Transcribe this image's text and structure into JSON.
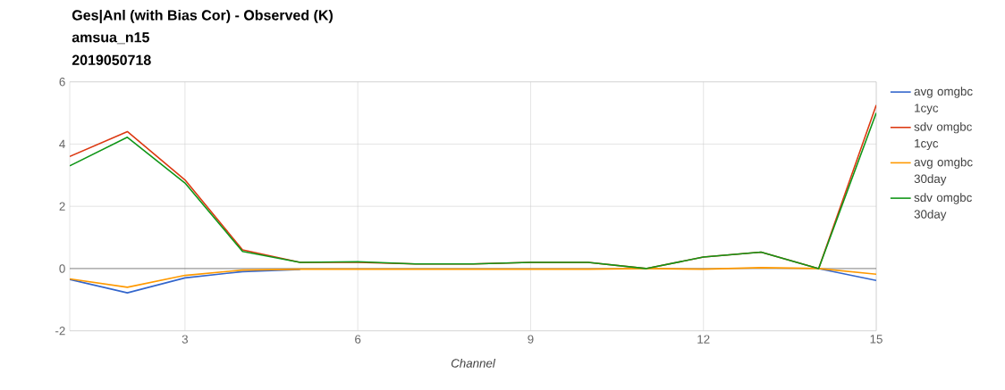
{
  "chart_data": {
    "type": "line",
    "title": "Ges|Anl (with Bias Cor) - Observed (K)",
    "subtitle": "amsua_n15",
    "annotations": [
      "2019050718"
    ],
    "xlabel": "Channel",
    "x": [
      1,
      2,
      3,
      4,
      5,
      6,
      7,
      8,
      9,
      10,
      11,
      12,
      13,
      14,
      15
    ],
    "series": [
      {
        "name": "avg omgbc 1cyc",
        "color": "#3366cc",
        "values": [
          -0.35,
          -0.78,
          -0.3,
          -0.1,
          -0.03,
          null,
          null,
          null,
          null,
          null,
          null,
          null,
          null,
          0.0,
          -0.38
        ]
      },
      {
        "name": "sdv omgbc 1cyc",
        "color": "#dc3912",
        "values": [
          3.6,
          4.4,
          2.85,
          0.6,
          0.2,
          0.2,
          0.15,
          0.15,
          0.2,
          0.2,
          0.0,
          0.37,
          0.53,
          0.0,
          5.25
        ]
      },
      {
        "name": "avg omgbc 30day",
        "color": "#ff9900",
        "values": [
          -0.33,
          -0.6,
          -0.22,
          -0.05,
          -0.02,
          -0.02,
          -0.02,
          -0.02,
          -0.02,
          -0.02,
          0.0,
          -0.02,
          0.03,
          0.0,
          -0.18
        ]
      },
      {
        "name": "sdv omgbc 30day",
        "color": "#109618",
        "values": [
          3.3,
          4.22,
          2.75,
          0.55,
          0.2,
          0.22,
          0.15,
          0.15,
          0.2,
          0.2,
          0.0,
          0.37,
          0.53,
          0.0,
          5.0
        ]
      }
    ],
    "xlim": [
      1,
      15
    ],
    "ylim": [
      -2,
      6
    ],
    "xticks": [
      3,
      6,
      9,
      12,
      15
    ],
    "yticks": [
      -2,
      0,
      2,
      4,
      6
    ],
    "ref_lines": [
      {
        "axis": "y",
        "value": 0,
        "color": "#333333"
      }
    ],
    "grid": true,
    "legend": "right",
    "line_style": "solid",
    "marker": "none"
  }
}
